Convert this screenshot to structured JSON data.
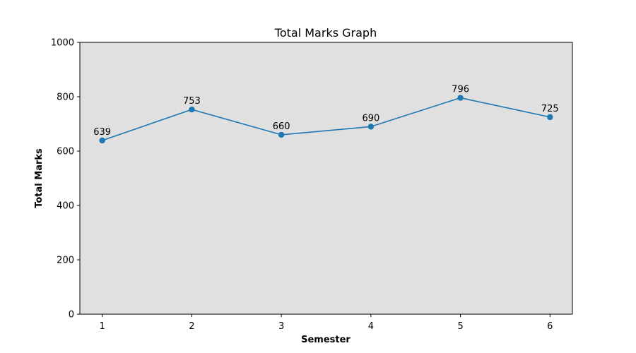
{
  "chart_data": {
    "type": "line",
    "title": "Total Marks Graph",
    "xlabel": "Semester",
    "ylabel": "Total Marks",
    "x": [
      1,
      2,
      3,
      4,
      5,
      6
    ],
    "series": [
      {
        "values": [
          639,
          753,
          660,
          690,
          796,
          725
        ],
        "color": "#1f77b4",
        "marker": "circle"
      }
    ],
    "data_labels": [
      "639",
      "753",
      "660",
      "690",
      "796",
      "725"
    ],
    "x_ticks": [
      "1",
      "2",
      "3",
      "4",
      "5",
      "6"
    ],
    "y_ticks": [
      "0",
      "200",
      "400",
      "600",
      "800",
      "1000"
    ],
    "ylim": [
      0,
      1000
    ],
    "xlim": [
      0.75,
      6.25
    ],
    "plot_background": "#e0e0e0",
    "grid": false,
    "legend": "none"
  }
}
